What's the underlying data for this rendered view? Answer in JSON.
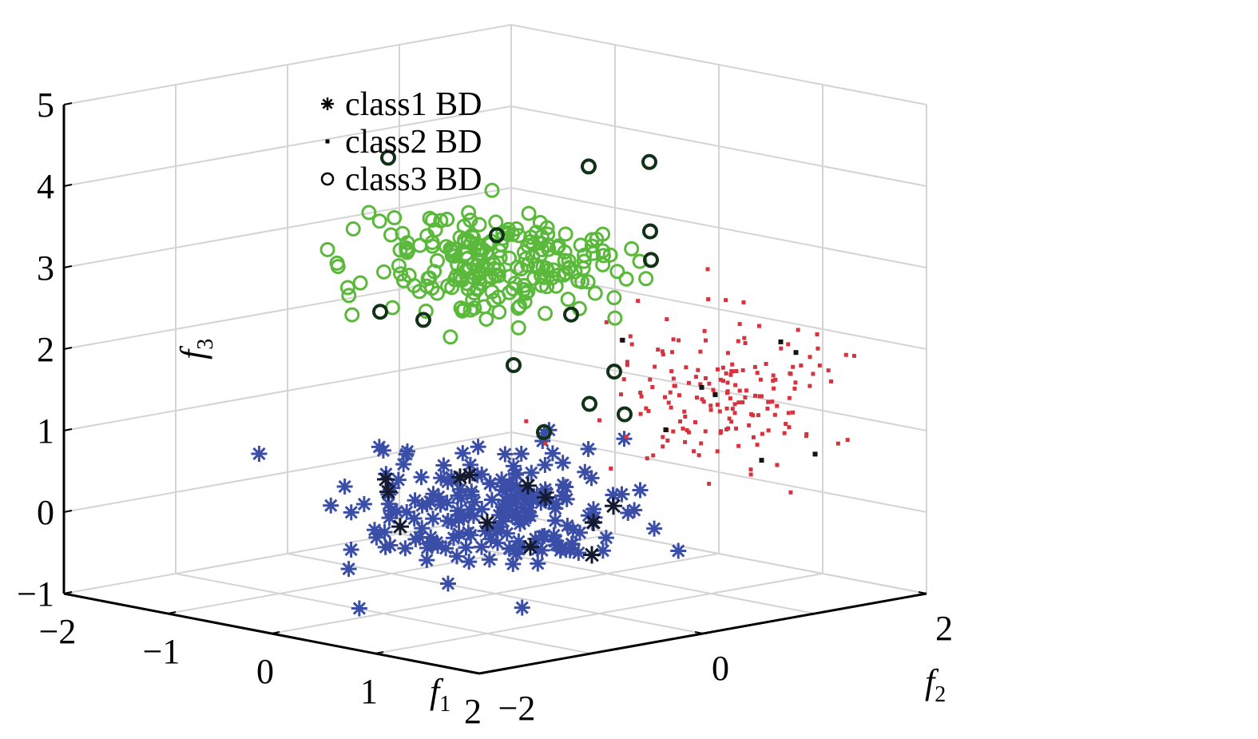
{
  "chart_data": {
    "type": "scatter",
    "subtype": "3d-scatter",
    "grid": true,
    "legend_position": "top-left",
    "axes": {
      "x": {
        "name": "f",
        "subscript": "1",
        "range": [
          -2,
          2
        ],
        "ticks": [
          -2,
          -1,
          0,
          1,
          2
        ],
        "tick_labels": [
          "−2",
          "−1",
          "0",
          "1",
          "2"
        ]
      },
      "y": {
        "name": "f",
        "subscript": "2",
        "range": [
          -2,
          2
        ],
        "ticks": [
          -2,
          0,
          2
        ],
        "tick_labels": [
          "−2",
          "0",
          "2"
        ]
      },
      "z": {
        "name": "f",
        "subscript": "3",
        "range": [
          -1,
          5
        ],
        "ticks": [
          -1,
          0,
          1,
          2,
          3,
          4,
          5
        ],
        "tick_labels": [
          "−1",
          "0",
          "1",
          "2",
          "3",
          "4",
          "5"
        ]
      }
    },
    "series": [
      {
        "name": "class1 BD",
        "marker": "asterisk",
        "color": "#3a4ea8",
        "boundary_color": "#141a30",
        "cluster_center": [
          0,
          0,
          0
        ],
        "approx_count": 200,
        "boundary_points": [
          [
            -0.3,
            -0.7,
            0.5
          ],
          [
            0.2,
            -0.5,
            0.6
          ],
          [
            -0.6,
            -0.4,
            0.2
          ],
          [
            -0.4,
            0.3,
            -0.3
          ],
          [
            0.5,
            0.4,
            -0.5
          ],
          [
            0.7,
            -0.2,
            0.4
          ],
          [
            0.3,
            0.6,
            -0.2
          ],
          [
            -0.2,
            0.5,
            -0.6
          ],
          [
            0.6,
            0.5,
            0.1
          ],
          [
            -0.7,
            -0.2,
            -0.3
          ],
          [
            0.1,
            0.2,
            0.3
          ],
          [
            0.4,
            -0.6,
            0.7
          ]
        ]
      },
      {
        "name": "class2 BD",
        "marker": "point",
        "color": "#d8323e",
        "boundary_color": "#141414",
        "cluster_center": [
          0,
          2,
          1
        ],
        "approx_count": 180,
        "boundary_points": [
          [
            -0.5,
            1.6,
            1.6
          ],
          [
            0.6,
            2.3,
            0.3
          ],
          [
            0.2,
            2.5,
            1.4
          ],
          [
            -0.3,
            1.8,
            0.5
          ],
          [
            0.7,
            1.9,
            1.8
          ],
          [
            0.3,
            2.1,
            0.2
          ],
          [
            -0.6,
            2.4,
            0.8
          ],
          [
            0.5,
            1.5,
            1.2
          ]
        ]
      },
      {
        "name": "class3 BD",
        "marker": "circle",
        "color": "#5ab93b",
        "boundary_color": "#123218",
        "cluster_center": [
          0,
          0,
          3
        ],
        "approx_count": 220,
        "boundary_points": [
          [
            -0.6,
            -0.4,
            4.3
          ],
          [
            0.3,
            1.1,
            4.1
          ],
          [
            -0.5,
            1.3,
            3.8
          ],
          [
            0.4,
            -1.4,
            2.9
          ],
          [
            0.6,
            -1.2,
            2.8
          ],
          [
            0.2,
            1.2,
            3.2
          ],
          [
            0.1,
            1.3,
            2.8
          ],
          [
            0.5,
            0.6,
            1.7
          ],
          [
            0.8,
            0.1,
            1.5
          ],
          [
            0.9,
            -0.4,
            1.3
          ],
          [
            0.6,
            0.6,
            1.2
          ],
          [
            -0.2,
            0.2,
            3.3
          ],
          [
            0.3,
            0.4,
            2.4
          ],
          [
            0.5,
            -0.3,
            2.0
          ]
        ]
      }
    ]
  }
}
